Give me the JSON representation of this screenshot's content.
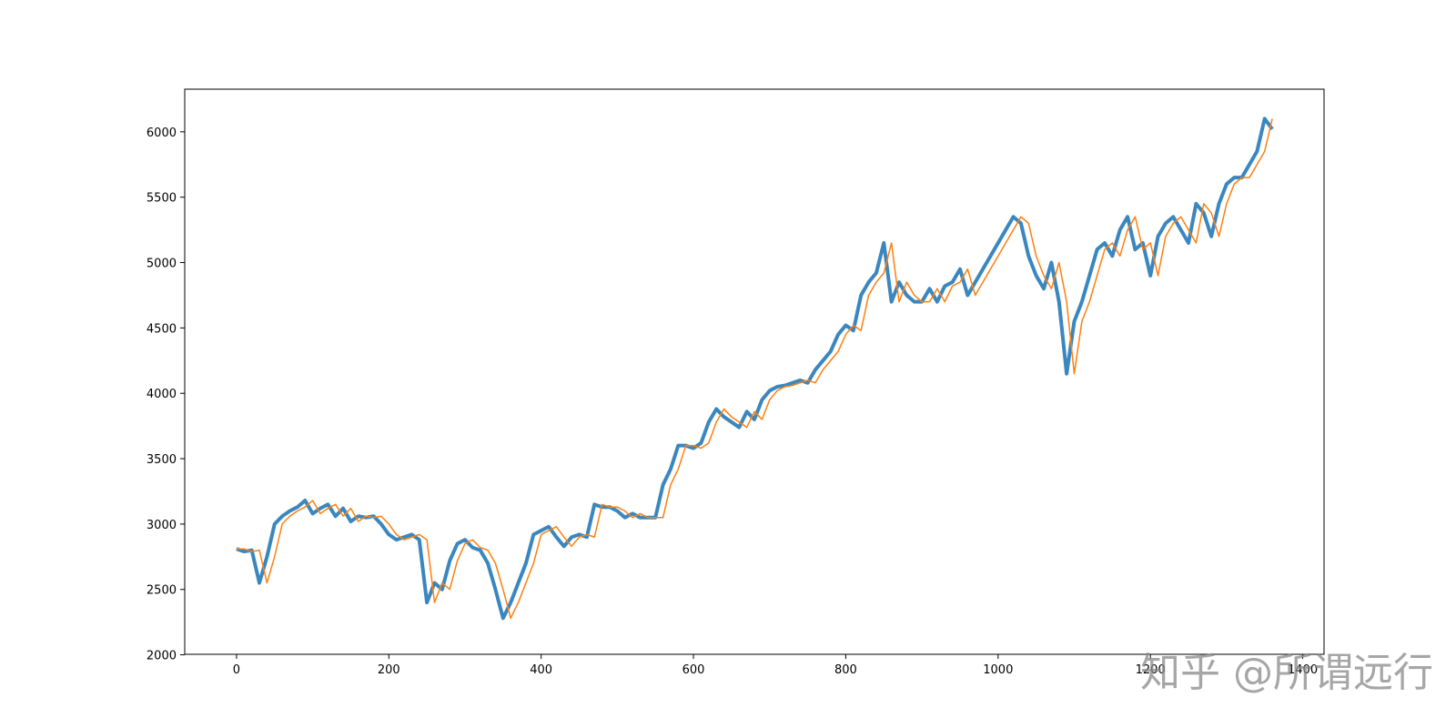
{
  "chart_data": {
    "type": "line",
    "x": [
      0,
      10,
      20,
      30,
      40,
      50,
      60,
      70,
      80,
      90,
      100,
      110,
      120,
      130,
      140,
      150,
      160,
      170,
      180,
      190,
      200,
      210,
      220,
      230,
      240,
      250,
      260,
      270,
      280,
      290,
      300,
      310,
      320,
      330,
      340,
      350,
      360,
      370,
      380,
      390,
      400,
      410,
      420,
      430,
      440,
      450,
      460,
      470,
      480,
      490,
      500,
      510,
      520,
      530,
      540,
      550,
      560,
      570,
      580,
      590,
      600,
      610,
      620,
      630,
      640,
      650,
      660,
      670,
      680,
      690,
      700,
      710,
      720,
      730,
      740,
      750,
      760,
      770,
      780,
      790,
      800,
      810,
      820,
      830,
      840,
      850,
      860,
      870,
      880,
      890,
      900,
      910,
      920,
      930,
      940,
      950,
      960,
      970,
      980,
      990,
      1000,
      1010,
      1020,
      1030,
      1040,
      1050,
      1060,
      1070,
      1080,
      1090,
      1100,
      1110,
      1120,
      1130,
      1140,
      1150,
      1160,
      1170,
      1180,
      1190,
      1200,
      1210,
      1220,
      1230,
      1240,
      1250,
      1260,
      1270,
      1280,
      1290,
      1300,
      1310,
      1320,
      1330,
      1340,
      1350,
      1360
    ],
    "series": [
      {
        "color": "#3a87bf",
        "width": 4,
        "values": [
          2810,
          2790,
          2800,
          2550,
          2750,
          3000,
          3060,
          3100,
          3130,
          3180,
          3080,
          3120,
          3150,
          3060,
          3120,
          3020,
          3060,
          3050,
          3060,
          3000,
          2920,
          2880,
          2900,
          2920,
          2880,
          2400,
          2550,
          2500,
          2720,
          2850,
          2880,
          2820,
          2800,
          2700,
          2500,
          2280,
          2400,
          2550,
          2700,
          2920,
          2950,
          2980,
          2900,
          2830,
          2900,
          2920,
          2900,
          3150,
          3130,
          3130,
          3100,
          3050,
          3080,
          3050,
          3050,
          3050,
          3300,
          3420,
          3600,
          3600,
          3580,
          3620,
          3780,
          3880,
          3820,
          3780,
          3740,
          3860,
          3800,
          3950,
          4020,
          4050,
          4060,
          4080,
          4100,
          4080,
          4180,
          4250,
          4320,
          4450,
          4520,
          4480,
          4750,
          4850,
          4920,
          5150,
          4700,
          4850,
          4750,
          4700,
          4700,
          4800,
          4700,
          4820,
          4850,
          4950,
          4750,
          4850,
          4950,
          5050,
          5150,
          5250,
          5350,
          5300,
          5050,
          4900,
          4800,
          5000,
          4700,
          4150,
          4550,
          4700,
          4900,
          5100,
          5150,
          5050,
          5250,
          5350,
          5100,
          5150,
          4900,
          5200,
          5300,
          5350,
          5250,
          5150,
          5450,
          5380,
          5200,
          5450,
          5600,
          5650,
          5650,
          5750,
          5850,
          6100,
          6020
        ]
      },
      {
        "color": "#ff7f0e",
        "width": 1.5,
        "values": [
          2810,
          2810,
          2790,
          2800,
          2550,
          2750,
          3000,
          3060,
          3100,
          3130,
          3180,
          3080,
          3120,
          3150,
          3060,
          3120,
          3020,
          3060,
          3050,
          3060,
          3000,
          2920,
          2880,
          2900,
          2920,
          2880,
          2400,
          2550,
          2500,
          2720,
          2850,
          2880,
          2820,
          2800,
          2700,
          2500,
          2280,
          2400,
          2550,
          2700,
          2920,
          2950,
          2980,
          2900,
          2830,
          2900,
          2920,
          2900,
          3150,
          3130,
          3130,
          3100,
          3050,
          3080,
          3050,
          3050,
          3050,
          3300,
          3420,
          3600,
          3600,
          3580,
          3620,
          3780,
          3880,
          3820,
          3780,
          3740,
          3860,
          3800,
          3950,
          4020,
          4050,
          4060,
          4080,
          4100,
          4080,
          4180,
          4250,
          4320,
          4450,
          4520,
          4480,
          4750,
          4850,
          4920,
          5150,
          4700,
          4850,
          4750,
          4700,
          4700,
          4800,
          4700,
          4820,
          4850,
          4950,
          4750,
          4850,
          4950,
          5050,
          5150,
          5250,
          5350,
          5300,
          5050,
          4900,
          4800,
          5000,
          4700,
          4150,
          4550,
          4700,
          4900,
          5100,
          5150,
          5050,
          5250,
          5350,
          5100,
          5150,
          4900,
          5200,
          5300,
          5350,
          5250,
          5150,
          5450,
          5380,
          5200,
          5450,
          5600,
          5650,
          5650,
          5750,
          5850,
          6100
        ]
      }
    ],
    "xlim": [
      -68,
      1428
    ],
    "xticks": [
      0,
      200,
      400,
      600,
      800,
      1000,
      1200,
      1400
    ],
    "ylim": [
      2004,
      6326
    ],
    "yticks": [
      2000,
      2500,
      3000,
      3500,
      4000,
      4500,
      5000,
      5500,
      6000
    ]
  },
  "watermark": "知乎 @所谓远行"
}
